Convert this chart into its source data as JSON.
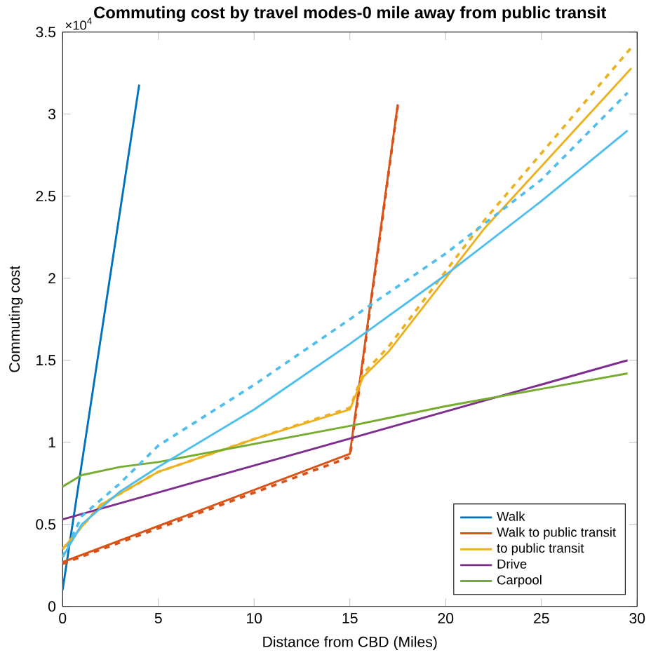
{
  "chart_data": {
    "type": "line",
    "title": "Commuting cost by travel modes-0 mile away from public transit",
    "xlabel": "Distance from CBD (Miles)",
    "ylabel": "Commuting cost",
    "annotations": [
      "×10$^{4}$"
    ],
    "xlim": [
      0,
      30
    ],
    "ylim": [
      0,
      3.5
    ],
    "xticks": [
      0,
      5,
      10,
      15,
      20,
      25,
      30
    ],
    "yticks": [
      0,
      0.5,
      1,
      1.5,
      2,
      2.5,
      3,
      3.5
    ],
    "grid": false,
    "legend": "bottom right",
    "line_style": "solid",
    "series": [
      {
        "name": "Walk",
        "color": "#0072bd",
        "x": [
          0,
          4
        ],
        "values": [
          0.1,
          3.18
        ]
      },
      {
        "name": "Walk to public transit",
        "color": "#d95319",
        "x": [
          0,
          15,
          17.5
        ],
        "values": [
          0.27,
          0.93,
          3.06
        ]
      },
      {
        "color": "#d95319",
        "line_style": "dashed",
        "x": [
          0,
          15,
          17.5
        ],
        "values": [
          0.26,
          0.91,
          3.05
        ]
      },
      {
        "name": "to public transit",
        "color": "#edb120",
        "x": [
          0,
          2,
          5,
          10,
          15,
          15.7,
          17,
          22,
          29.7
        ],
        "values": [
          0.35,
          0.62,
          0.82,
          1.02,
          1.2,
          1.4,
          1.55,
          2.3,
          3.28
        ]
      },
      {
        "color": "#edb120",
        "line_style": "dashed",
        "x": [
          0,
          2,
          5,
          10,
          15,
          15.7,
          17,
          22,
          29.8
        ],
        "values": [
          0.35,
          0.62,
          0.82,
          1.02,
          1.21,
          1.42,
          1.58,
          2.35,
          3.42
        ]
      },
      {
        "name": "Drive",
        "color": "#7e2f8e",
        "x": [
          0,
          29.5
        ],
        "values": [
          0.53,
          1.5
        ]
      },
      {
        "name": "Carpool",
        "color": "#77ac30",
        "x": [
          0,
          1,
          3,
          5,
          10,
          15,
          20,
          29.5
        ],
        "values": [
          0.73,
          0.8,
          0.85,
          0.88,
          0.99,
          1.1,
          1.22,
          1.42
        ]
      },
      {
        "color": "#4dbeee",
        "x": [
          0,
          1,
          3,
          5,
          10,
          15,
          20,
          25,
          29.5
        ],
        "values": [
          0.3,
          0.5,
          0.7,
          0.85,
          1.2,
          1.6,
          2.02,
          2.47,
          2.9
        ]
      },
      {
        "color": "#4dbeee",
        "line_style": "dashed",
        "x": [
          0,
          1,
          3,
          5,
          10,
          15,
          20,
          25,
          29.5
        ],
        "values": [
          0.3,
          0.55,
          0.75,
          0.98,
          1.35,
          1.75,
          2.15,
          2.6,
          3.13
        ]
      }
    ]
  }
}
